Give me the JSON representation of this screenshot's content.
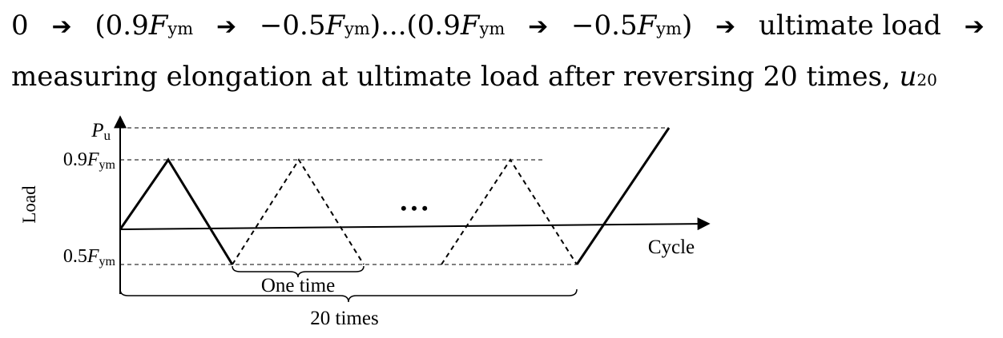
{
  "sequence": {
    "start": "0",
    "pair_open": "(0.9",
    "force_symbol": "F",
    "force_subscript": "ym",
    "negative_coefficient": "−0.5",
    "pair_close": ")",
    "repeat_ellipsis": "...",
    "end_step": "ultimate load",
    "measurement": "measuring elongation at ultimate load after reversing 20 times,",
    "result_symbol": "u",
    "result_subscript": "20",
    "arrow_glyph": "➔"
  },
  "diagram": {
    "y_axis_label": "Load",
    "x_axis_label": "Cycle",
    "ultimate_load_symbol": "P",
    "ultimate_load_subscript": "u",
    "upper_level_prefix": "0.9",
    "lower_level_prefix": "0.5",
    "force_symbol": "F",
    "force_subscript": "ym",
    "ellipsis": "• • •",
    "single_cycle_label": "One time",
    "total_cycles_label": "20 times"
  },
  "chart_data": {
    "type": "line",
    "title": "",
    "xlabel": "Cycle",
    "ylabel": "Load",
    "levels": [
      "0.5Fym",
      "0.9Fym",
      "Pu"
    ],
    "cycles_shown": 3,
    "total_cycles": 20,
    "segments": [
      {
        "style": "solid",
        "points": [
          [
            "start",
            "axis"
          ],
          [
            "peak",
            "0.9Fym"
          ],
          [
            "end",
            "0.5Fym"
          ]
        ]
      },
      {
        "style": "dashed",
        "points": [
          [
            "start",
            "0.5Fym"
          ],
          [
            "peak",
            "0.9Fym"
          ],
          [
            "end",
            "0.5Fym"
          ]
        ]
      },
      {
        "style": "dashed",
        "points": [
          [
            "start",
            "0.5Fym"
          ],
          [
            "peak",
            "0.9Fym"
          ],
          [
            "end",
            "0.5Fym"
          ]
        ]
      },
      {
        "style": "solid",
        "points": [
          [
            "start",
            "0.5Fym"
          ],
          [
            "end",
            "Pu"
          ]
        ]
      }
    ],
    "grid": false,
    "legend": "none"
  }
}
